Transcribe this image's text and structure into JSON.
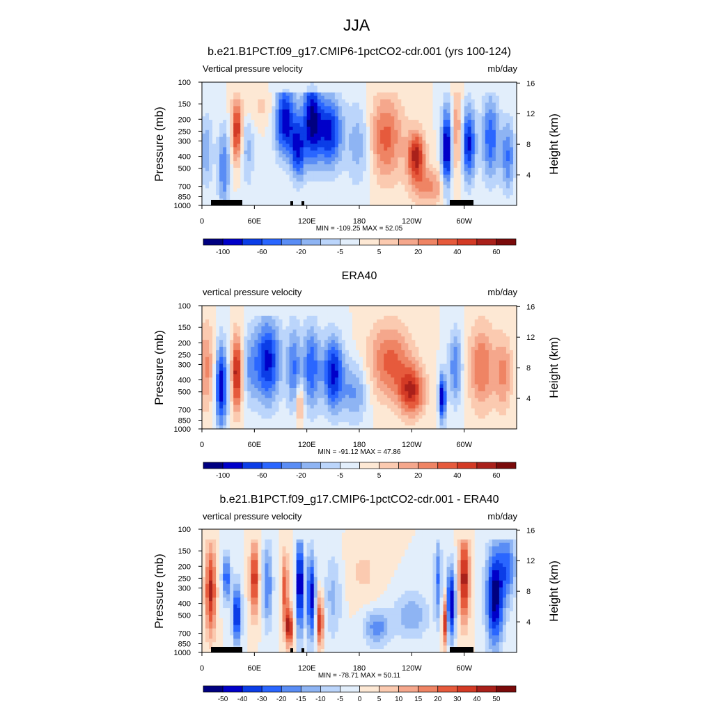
{
  "page_title": "JJA",
  "colorbar_colors": [
    "#000080",
    "#0000c9",
    "#0b3de7",
    "#2a66ff",
    "#5a8df5",
    "#8eb4f3",
    "#bbd5fb",
    "#e2eefb",
    "#fde8d4",
    "#fbcab0",
    "#f5a78c",
    "#ef8464",
    "#e65a3c",
    "#d33a25",
    "#a9201a",
    "#7a0a0a"
  ],
  "charts": [
    {
      "name": "model",
      "title": "b.e21.B1PCT.f09_g17.CMIP6-1pctCO2-cdr.001 (yrs 100-124)",
      "left_label": "Vertical pressure velocity",
      "right_label": "mb/day",
      "stats": "MIN = -109.25  MAX =  52.05",
      "colorbar_labels": [
        "-100",
        "-60",
        "-20",
        "-5",
        "5",
        "20",
        "40",
        "60"
      ],
      "terrain": true,
      "variant": 0
    },
    {
      "name": "obs",
      "title": "ERA40",
      "left_label": "vertical pressure velocity",
      "right_label": "mb/day",
      "stats": "MIN = -91.12  MAX =  47.86",
      "colorbar_labels": [
        "-100",
        "-60",
        "-20",
        "-5",
        "5",
        "20",
        "40",
        "60"
      ],
      "terrain": false,
      "variant": 1
    },
    {
      "name": "diff",
      "title": "b.e21.B1PCT.f09_g17.CMIP6-1pctCO2-cdr.001 - ERA40",
      "left_label": "vertical pressure velocity",
      "right_label": "mb/day",
      "stats": "MIN = -78.71  MAX =  50.11",
      "colorbar_labels": [
        "-50",
        "-40",
        "-30",
        "-20",
        "-15",
        "-10",
        "-5",
        "0",
        "5",
        "10",
        "15",
        "20",
        "30",
        "40",
        "50"
      ],
      "terrain": true,
      "variant": 2
    }
  ],
  "chart_data": [
    {
      "type": "heatmap",
      "title": "b.e21.B1PCT.f09_g17.CMIP6-1pctCO2-cdr.001 (yrs 100-124)",
      "subtitle": "Vertical pressure velocity",
      "units": "mb/day",
      "ylabel": "Pressure (mb)",
      "y2label": "Height (km)",
      "x_ticks": [
        "0",
        "60E",
        "120E",
        "180",
        "120W",
        "60W"
      ],
      "y_ticks": [
        "100",
        "150",
        "200",
        "250",
        "300",
        "400",
        "500",
        "700",
        "850",
        "1000"
      ],
      "y2_ticks": [
        "4",
        "8",
        "12",
        "16"
      ],
      "y_log_scale": true,
      "ylim": [
        1000,
        100
      ],
      "colorbar_levels": [
        "-100",
        "-60",
        "-20",
        "-5",
        "5",
        "20",
        "40",
        "60"
      ],
      "min": -109.25,
      "max": 52.05
    },
    {
      "type": "heatmap",
      "title": "ERA40",
      "subtitle": "vertical pressure velocity",
      "units": "mb/day",
      "ylabel": "Pressure (mb)",
      "y2label": "Height (km)",
      "x_ticks": [
        "0",
        "60E",
        "120E",
        "180",
        "120W",
        "60W"
      ],
      "y_ticks": [
        "100",
        "150",
        "200",
        "250",
        "300",
        "400",
        "500",
        "700",
        "850",
        "1000"
      ],
      "y2_ticks": [
        "4",
        "8",
        "12",
        "16"
      ],
      "y_log_scale": true,
      "ylim": [
        1000,
        100
      ],
      "colorbar_levels": [
        "-100",
        "-60",
        "-20",
        "-5",
        "5",
        "20",
        "40",
        "60"
      ],
      "min": -91.12,
      "max": 47.86
    },
    {
      "type": "heatmap",
      "title": "b.e21.B1PCT.f09_g17.CMIP6-1pctCO2-cdr.001 - ERA40",
      "subtitle": "vertical pressure velocity",
      "units": "mb/day",
      "ylabel": "Pressure (mb)",
      "y2label": "Height (km)",
      "x_ticks": [
        "0",
        "60E",
        "120E",
        "180",
        "120W",
        "60W"
      ],
      "y_ticks": [
        "100",
        "150",
        "200",
        "250",
        "300",
        "400",
        "500",
        "700",
        "850",
        "1000"
      ],
      "y2_ticks": [
        "4",
        "8",
        "12",
        "16"
      ],
      "y_log_scale": true,
      "ylim": [
        1000,
        100
      ],
      "colorbar_levels": [
        "-50",
        "-40",
        "-30",
        "-20",
        "-15",
        "-10",
        "-5",
        "0",
        "5",
        "10",
        "15",
        "20",
        "30",
        "40",
        "50"
      ],
      "min": -78.71,
      "max": 50.11
    }
  ],
  "axes": {
    "ylabel": "Pressure (mb)",
    "y2label": "Height (km)",
    "x_ticks": [
      "0",
      "60E",
      "120E",
      "180",
      "120W",
      "60W"
    ],
    "y_ticks": [
      "100",
      "150",
      "200",
      "250",
      "300",
      "400",
      "500",
      "700",
      "850",
      "1000"
    ],
    "y2_ticks": [
      "4",
      "8",
      "12",
      "16"
    ]
  }
}
